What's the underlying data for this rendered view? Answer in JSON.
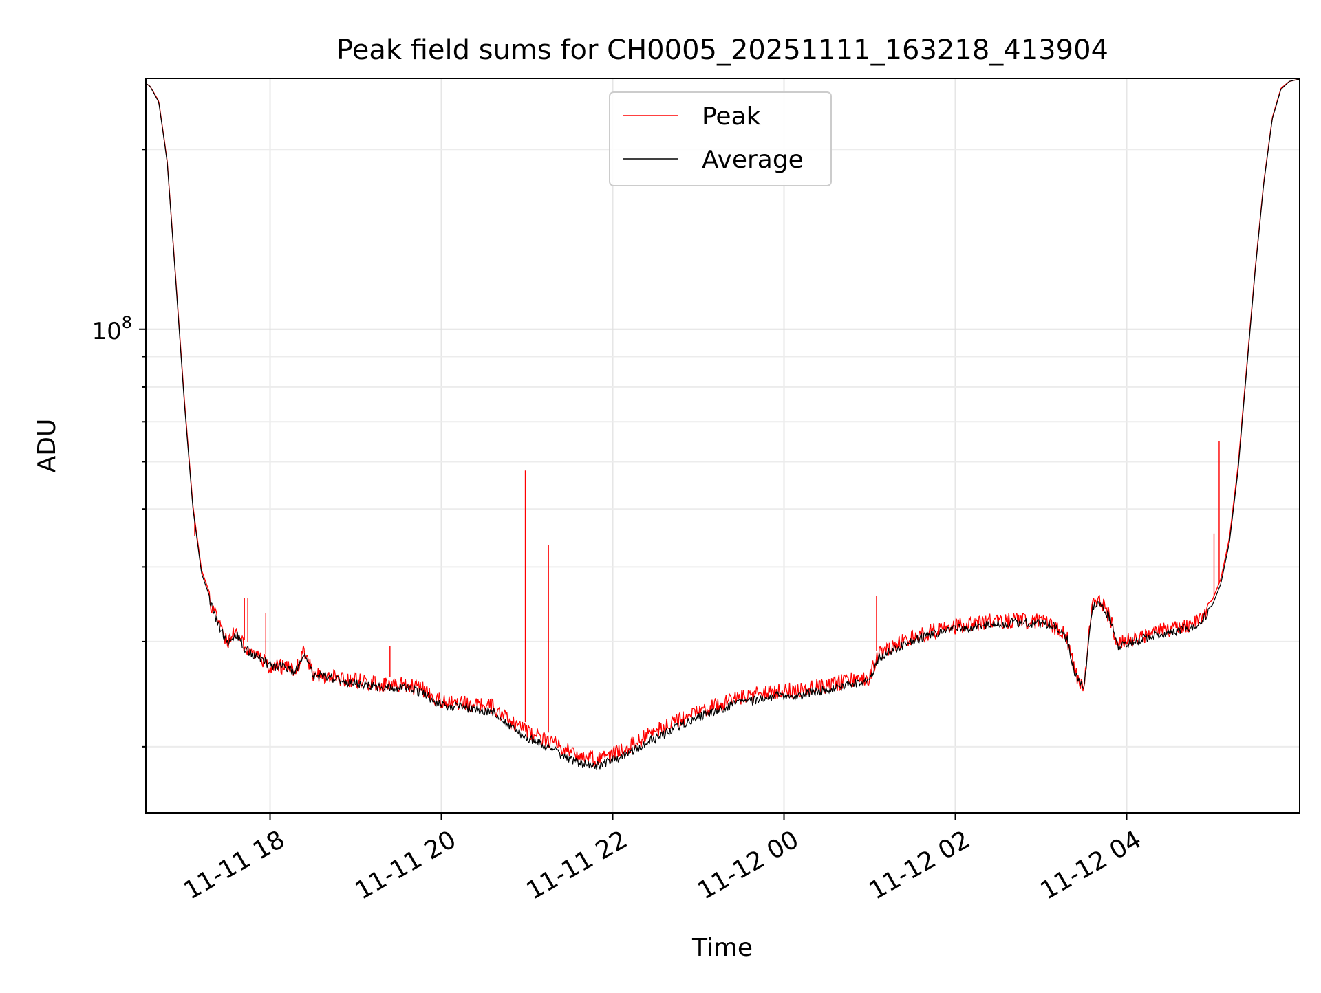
{
  "chart_data": {
    "type": "line",
    "title": "Peak field sums for CH0005_20251111_163218_413904",
    "xlabel": "Time",
    "ylabel": "ADU",
    "yscale": "log",
    "ylim": [
      15500000,
      263000000
    ],
    "ytick_labels": [
      {
        "value": 100000000,
        "label": "10",
        "superscript": "8"
      }
    ],
    "xlim": [
      16.55,
      30.02
    ],
    "xtick_labels": [
      {
        "value": 18,
        "label": "11-11 18"
      },
      {
        "value": 20,
        "label": "11-11 20"
      },
      {
        "value": 22,
        "label": "11-11 22"
      },
      {
        "value": 24,
        "label": "11-12 00"
      },
      {
        "value": 26,
        "label": "11-12 02"
      },
      {
        "value": 28,
        "label": "11-12 04"
      }
    ],
    "grid": true,
    "legend": {
      "position": "top-center",
      "entries": [
        {
          "name": "Peak",
          "color": "#ff0000"
        },
        {
          "name": "Average",
          "color": "#000000"
        }
      ]
    },
    "series": [
      {
        "name": "Average",
        "color": "#000000",
        "x": [
          16.55,
          16.6,
          16.7,
          16.8,
          16.9,
          17.0,
          17.1,
          17.2,
          17.3,
          17.4,
          17.5,
          17.6,
          17.7,
          17.8,
          17.9,
          18.0,
          18.2,
          18.3,
          18.4,
          18.5,
          18.6,
          18.8,
          19.0,
          19.2,
          19.4,
          19.6,
          19.8,
          20.0,
          20.2,
          20.4,
          20.6,
          20.8,
          21.0,
          21.2,
          21.4,
          21.6,
          21.8,
          22.0,
          22.2,
          22.4,
          22.6,
          22.8,
          23.0,
          23.2,
          23.4,
          23.6,
          23.8,
          24.0,
          24.2,
          24.4,
          24.6,
          24.8,
          25.0,
          25.05,
          25.1,
          25.3,
          25.5,
          25.7,
          25.9,
          26.1,
          26.3,
          26.5,
          26.7,
          26.9,
          27.1,
          27.3,
          27.4,
          27.5,
          27.6,
          27.7,
          27.8,
          27.9,
          28.0,
          28.2,
          28.4,
          28.6,
          28.8,
          29.0,
          29.1,
          29.2,
          29.3,
          29.4,
          29.5,
          29.6,
          29.7,
          29.8,
          29.9,
          30.0
        ],
        "values": [
          258000000,
          255000000,
          240000000,
          190000000,
          120000000,
          75000000,
          50000000,
          39000000,
          35500000,
          32500000,
          30500000,
          31500000,
          29800000,
          29000000,
          28500000,
          27800000,
          27600000,
          27200000,
          29300000,
          26800000,
          26700000,
          26300000,
          26000000,
          25700000,
          25500000,
          25600000,
          25000000,
          23800000,
          23800000,
          23500000,
          23300000,
          22000000,
          21000000,
          20500000,
          19800000,
          19100000,
          18900000,
          19300000,
          19900000,
          20700000,
          21400000,
          22200000,
          22800000,
          23400000,
          23900000,
          24300000,
          24600000,
          24900000,
          24800000,
          25200000,
          25500000,
          25900000,
          26200000,
          27500000,
          28600000,
          29700000,
          30600000,
          31300000,
          31800000,
          32200000,
          32500000,
          32700000,
          32800000,
          32800000,
          32700000,
          31000000,
          27000000,
          25500000,
          35000000,
          35300000,
          33500000,
          30000000,
          30300000,
          30900000,
          31500000,
          31800000,
          32600000,
          34500000,
          37500000,
          44000000,
          58000000,
          85000000,
          125000000,
          175000000,
          225000000,
          252000000,
          260000000,
          262000000
        ]
      },
      {
        "name": "Peak",
        "color": "#ff0000",
        "x": [
          16.55,
          16.6,
          16.7,
          16.8,
          16.9,
          17.0,
          17.1,
          17.2,
          17.3,
          17.4,
          17.5,
          17.6,
          17.7,
          17.8,
          17.9,
          18.0,
          18.2,
          18.3,
          18.4,
          18.5,
          18.6,
          18.8,
          19.0,
          19.2,
          19.4,
          19.6,
          19.8,
          20.0,
          20.2,
          20.4,
          20.6,
          20.8,
          21.0,
          21.2,
          21.4,
          21.6,
          21.8,
          22.0,
          22.2,
          22.4,
          22.6,
          22.8,
          23.0,
          23.2,
          23.4,
          23.6,
          23.8,
          24.0,
          24.2,
          24.4,
          24.6,
          24.8,
          25.0,
          25.05,
          25.1,
          25.3,
          25.5,
          25.7,
          25.9,
          26.1,
          26.3,
          26.5,
          26.7,
          26.9,
          27.1,
          27.3,
          27.4,
          27.5,
          27.6,
          27.7,
          27.8,
          27.9,
          28.0,
          28.2,
          28.4,
          28.6,
          28.8,
          29.0,
          29.1,
          29.2,
          29.3,
          29.4,
          29.5,
          29.6,
          29.7,
          29.8,
          29.9,
          30.0
        ],
        "values": [
          258000000,
          255000000,
          241000000,
          191000000,
          121000000,
          76000000,
          50500000,
          39500000,
          36000000,
          33000000,
          31000000,
          32000000,
          30200000,
          29500000,
          29000000,
          28200000,
          28100000,
          27700000,
          29800000,
          27300000,
          27200000,
          26900000,
          26600000,
          26300000,
          26200000,
          26200000,
          25700000,
          24500000,
          24500000,
          24200000,
          24100000,
          22800000,
          21900000,
          21300000,
          20600000,
          19900000,
          19600000,
          20000000,
          20700000,
          21500000,
          22200000,
          23000000,
          23600000,
          24200000,
          24700000,
          25100000,
          25400000,
          25700000,
          25600000,
          26000000,
          26300000,
          26700000,
          27000000,
          28300000,
          29400000,
          30500000,
          31400000,
          32100000,
          32600000,
          33000000,
          33300000,
          33500000,
          33500000,
          33500000,
          33300000,
          31500000,
          27400000,
          26000000,
          35700000,
          36000000,
          34000000,
          30600000,
          31000000,
          31600000,
          32200000,
          32500000,
          33300000,
          35200000,
          38200000,
          44800000,
          59000000,
          86000000,
          126000000,
          176000000,
          226000000,
          253000000,
          260000000,
          262000000
        ]
      }
    ],
    "peak_spikes": [
      {
        "x": 17.12,
        "value": 45000000
      },
      {
        "x": 17.7,
        "value": 35500000
      },
      {
        "x": 17.74,
        "value": 35500000
      },
      {
        "x": 17.95,
        "value": 33500000
      },
      {
        "x": 19.4,
        "value": 29500000
      },
      {
        "x": 20.98,
        "value": 58000000
      },
      {
        "x": 21.25,
        "value": 43500000
      },
      {
        "x": 25.08,
        "value": 35800000
      },
      {
        "x": 29.02,
        "value": 45500000
      },
      {
        "x": 29.08,
        "value": 65000000
      }
    ]
  }
}
